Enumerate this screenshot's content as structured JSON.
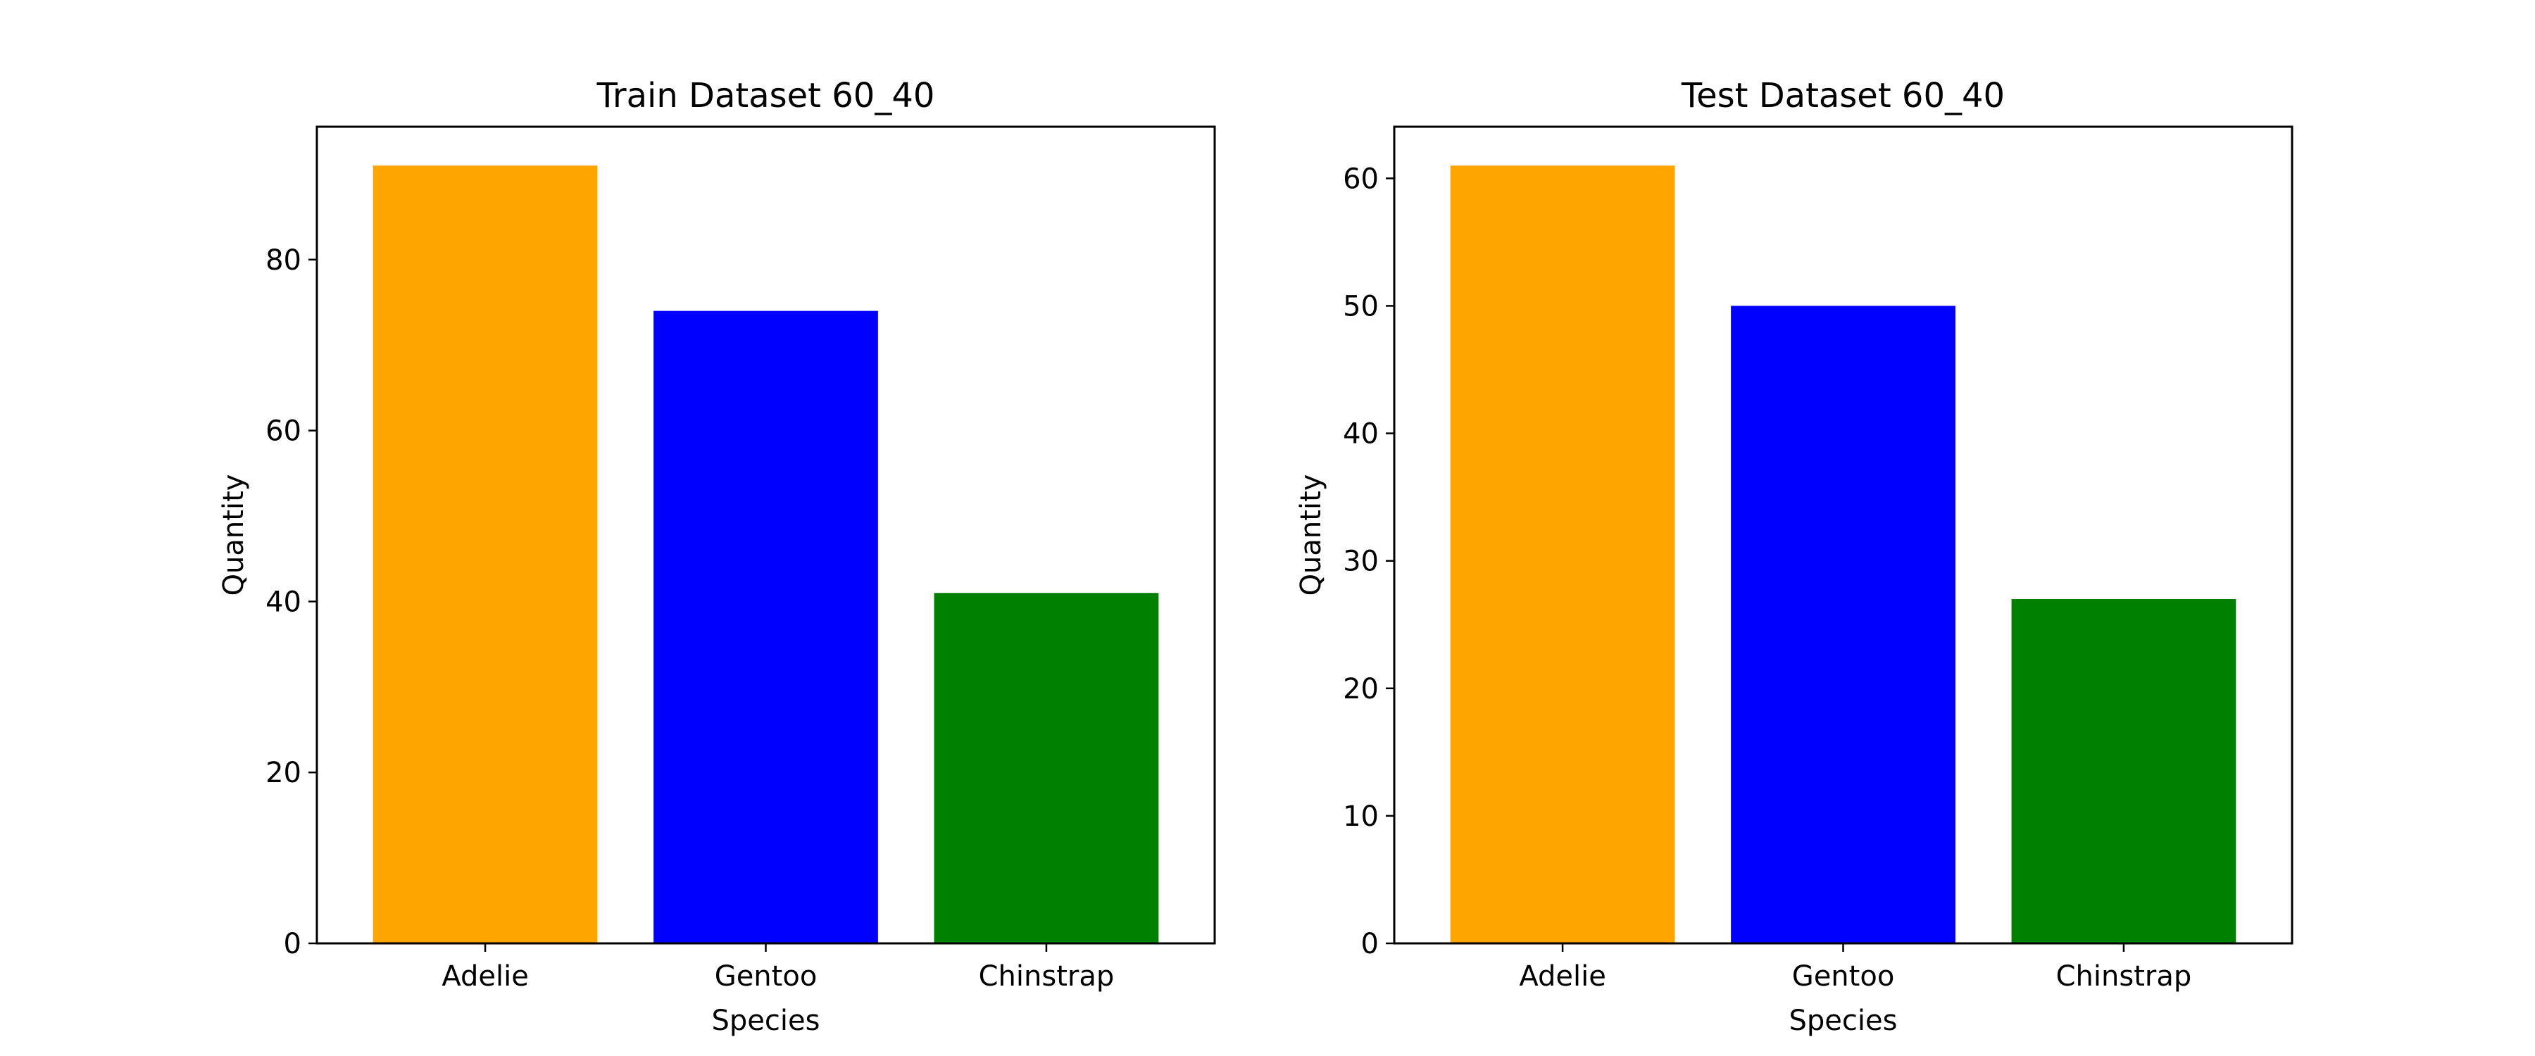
{
  "chart_data": [
    {
      "type": "bar",
      "title": "Train Dataset 60_40",
      "xlabel": "Species",
      "ylabel": "Quantity",
      "categories": [
        "Adelie",
        "Gentoo",
        "Chinstrap"
      ],
      "values": [
        91,
        74,
        41
      ],
      "colors": [
        "#FFA500",
        "#0000FF",
        "#008000"
      ],
      "ylim": [
        0,
        95.55
      ],
      "yticks": [
        0,
        20,
        40,
        60,
        80
      ],
      "grid": false
    },
    {
      "type": "bar",
      "title": "Test Dataset 60_40",
      "xlabel": "Species",
      "ylabel": "Quantity",
      "categories": [
        "Adelie",
        "Gentoo",
        "Chinstrap"
      ],
      "values": [
        61,
        50,
        27
      ],
      "colors": [
        "#FFA500",
        "#0000FF",
        "#008000"
      ],
      "ylim": [
        0,
        64.05
      ],
      "yticks": [
        0,
        10,
        20,
        30,
        40,
        50,
        60
      ],
      "grid": false
    }
  ]
}
